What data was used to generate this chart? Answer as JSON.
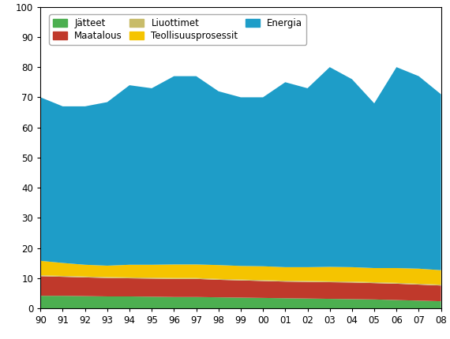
{
  "years": [
    1990,
    1991,
    1992,
    1993,
    1994,
    1995,
    1996,
    1997,
    1998,
    1999,
    2000,
    2001,
    2002,
    2003,
    2004,
    2005,
    2006,
    2007,
    2008
  ],
  "jatteet": [
    4.2,
    4.2,
    4.1,
    4.0,
    4.0,
    3.9,
    3.8,
    3.8,
    3.7,
    3.6,
    3.5,
    3.4,
    3.3,
    3.2,
    3.1,
    3.0,
    2.8,
    2.6,
    2.4
  ],
  "maatalous": [
    6.5,
    6.3,
    6.2,
    6.1,
    6.0,
    6.0,
    6.0,
    6.0,
    5.8,
    5.7,
    5.6,
    5.5,
    5.5,
    5.5,
    5.5,
    5.4,
    5.4,
    5.3,
    5.2
  ],
  "liuottimet": [
    0.3,
    0.3,
    0.3,
    0.3,
    0.3,
    0.3,
    0.3,
    0.3,
    0.3,
    0.3,
    0.3,
    0.3,
    0.3,
    0.3,
    0.3,
    0.3,
    0.3,
    0.3,
    0.3
  ],
  "teollisuusprosessit": [
    4.8,
    4.3,
    3.9,
    3.8,
    4.2,
    4.3,
    4.5,
    4.5,
    4.6,
    4.5,
    4.6,
    4.5,
    4.6,
    4.8,
    4.8,
    4.7,
    4.9,
    5.0,
    4.8
  ],
  "energia": [
    54.2,
    51.9,
    52.5,
    54.2,
    59.5,
    58.5,
    62.4,
    62.4,
    57.6,
    55.9,
    56.0,
    61.3,
    59.3,
    66.2,
    62.3,
    54.6,
    66.6,
    63.8,
    58.3
  ],
  "colors": {
    "jatteet": "#4caf50",
    "maatalous": "#c0392b",
    "liuottimet": "#c8bc6a",
    "teollisuusprosessit": "#f5c400",
    "energia": "#1e9dc8"
  },
  "labels": {
    "jatteet": "Jätteet",
    "maatalous": "Maatalous",
    "liuottimet": "Liuottimet",
    "teollisuusprosessit": "Teollisuusprosessit",
    "energia": "Energia"
  },
  "ylim": [
    0,
    100
  ],
  "yticks": [
    0,
    10,
    20,
    30,
    40,
    50,
    60,
    70,
    80,
    90,
    100
  ],
  "xtick_labels": [
    "90",
    "91",
    "92",
    "93",
    "94",
    "95",
    "96",
    "97",
    "98",
    "99",
    "00",
    "01",
    "02",
    "03",
    "04",
    "05",
    "06",
    "07",
    "08"
  ],
  "background_color": "#ffffff",
  "legend_fontsize": 8.5,
  "tick_fontsize": 8.5
}
